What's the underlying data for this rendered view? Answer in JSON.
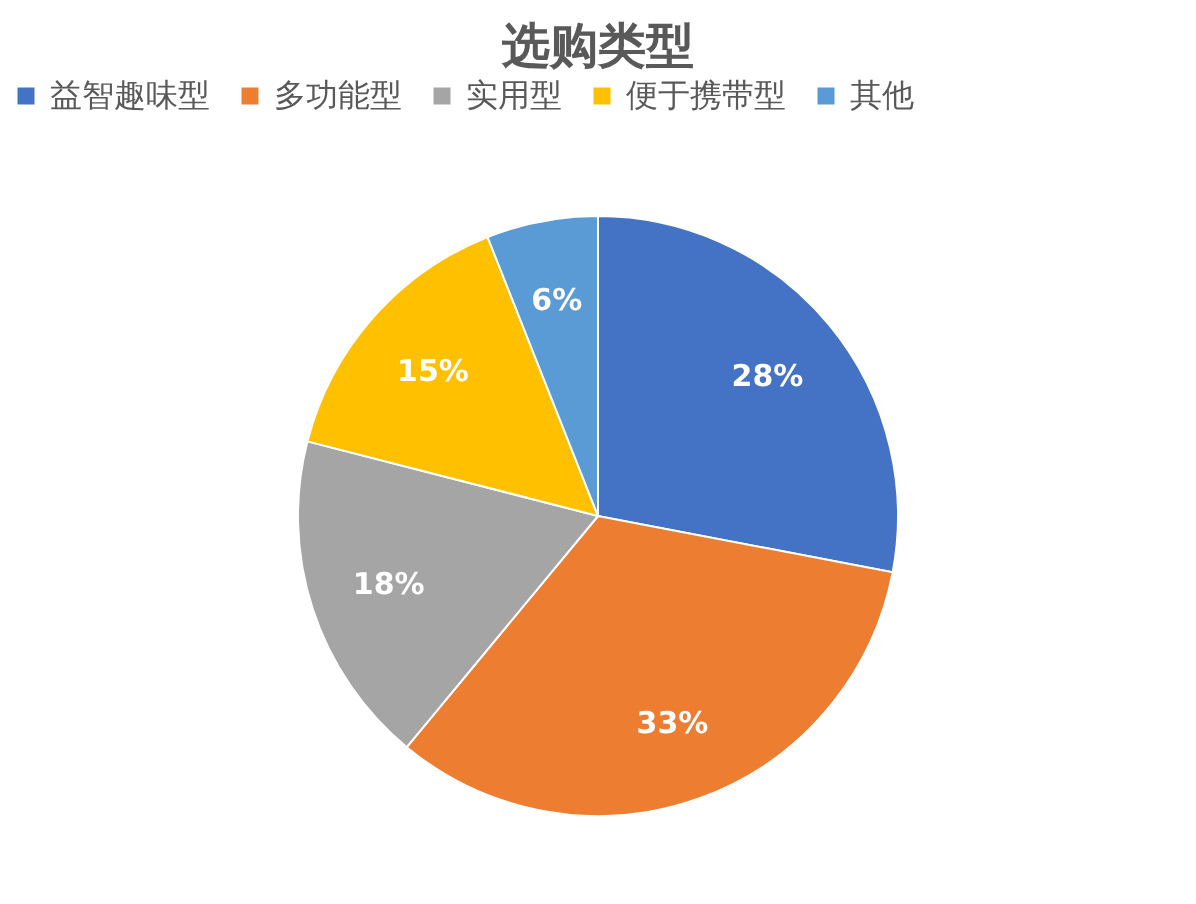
{
  "chart_data": {
    "type": "pie",
    "title": "选购类型",
    "categories": [
      "益智趣味型",
      "多功能型",
      "实用型",
      "便于携带型",
      "其他"
    ],
    "values": [
      28,
      33,
      18,
      15,
      6
    ],
    "colors": [
      "#4472c4",
      "#ed7d31",
      "#a5a5a5",
      "#ffc000",
      "#5b9bd5"
    ],
    "value_labels": [
      "28%",
      "33%",
      "18%",
      "15%",
      "6%"
    ],
    "legend": "top"
  }
}
